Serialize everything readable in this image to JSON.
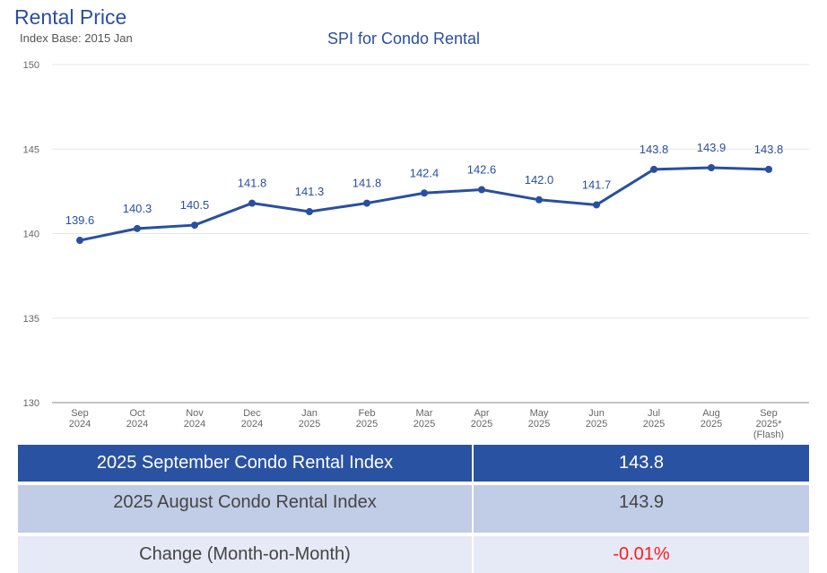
{
  "header": {
    "title": "Rental Price",
    "subtitle": "Index Base: 2015 Jan"
  },
  "chart_data": {
    "type": "line",
    "title": "SPI for Condo Rental",
    "categories": [
      [
        "Sep",
        "2024"
      ],
      [
        "Oct",
        "2024"
      ],
      [
        "Nov",
        "2024"
      ],
      [
        "Dec",
        "2024"
      ],
      [
        "Jan",
        "2025"
      ],
      [
        "Feb",
        "2025"
      ],
      [
        "Mar",
        "2025"
      ],
      [
        "Apr",
        "2025"
      ],
      [
        "May",
        "2025"
      ],
      [
        "Jun",
        "2025"
      ],
      [
        "Jul",
        "2025"
      ],
      [
        "Aug",
        "2025"
      ],
      [
        "Sep",
        "2025*",
        "(Flash)"
      ]
    ],
    "values": [
      139.6,
      140.3,
      140.5,
      141.8,
      141.3,
      141.8,
      142.4,
      142.6,
      142.0,
      141.7,
      143.8,
      143.9,
      143.8
    ],
    "ylim": [
      130,
      150
    ],
    "yticks": [
      130,
      135,
      140,
      145,
      150
    ],
    "grid": true,
    "color": "#2a4fa0"
  },
  "table": {
    "rows": [
      {
        "label": "2025 September Condo Rental Index",
        "value": "143.8"
      },
      {
        "label": "2025 August Condo Rental Index",
        "value": "143.9"
      },
      {
        "label": "Change (Month-on-Month)",
        "value": "-0.01%"
      }
    ],
    "colors": {
      "header": "#2a52a3",
      "row2": "#c1cce6",
      "row3": "#e6eaf6",
      "negative": "#ff1a1a"
    }
  }
}
